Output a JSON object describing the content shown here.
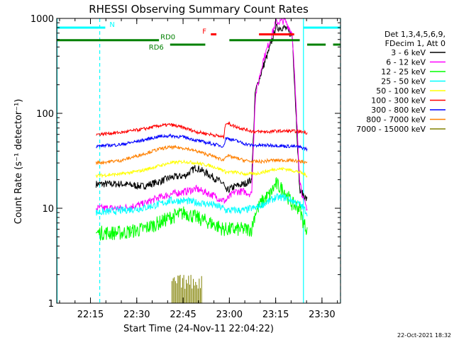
{
  "chart_data": {
    "type": "line",
    "title": "RHESSI Observing Summary Count Rates",
    "xlabel": "Start Time (24-Nov-11 22:04:22)",
    "ylabel": "Count Rate (s⁻¹ detector⁻¹)",
    "yscale": "log",
    "ylim": [
      1,
      1000
    ],
    "xlim": [
      22.068,
      23.6
    ],
    "x_tick_labels": [
      "22:15",
      "22:30",
      "22:45",
      "23:00",
      "23:15",
      "23:30"
    ],
    "x_tick_values": [
      22.25,
      22.5,
      22.75,
      23.0,
      23.25,
      23.5
    ],
    "y_tick_labels": [
      "1",
      "10",
      "100",
      "1000"
    ],
    "y_tick_values": [
      1,
      10,
      100,
      1000
    ],
    "legend_title": [
      "Det 1,3,4,5,6,9,",
      "FDecim 1, Att 0"
    ],
    "legend_position": "right",
    "timestamp": "22-Oct-2021 18:32",
    "series": [
      {
        "name": "3 - 6 keV",
        "color": "#000000",
        "x": [
          22.28,
          22.42,
          22.53,
          22.62,
          22.68,
          22.76,
          22.82,
          22.9,
          22.97,
          22.98,
          23.03,
          23.08,
          23.12,
          23.14,
          23.18,
          23.22,
          23.25,
          23.3,
          23.34,
          23.38,
          23.4,
          23.42
        ],
        "y": [
          18,
          18,
          17,
          19,
          21,
          22,
          27,
          22,
          18,
          15,
          17,
          18,
          20,
          170,
          300,
          500,
          800,
          800,
          650,
          15,
          14,
          12
        ]
      },
      {
        "name": "6 - 12 keV",
        "color": "#ff00ff",
        "x": [
          22.28,
          22.42,
          22.53,
          22.62,
          22.68,
          22.76,
          22.82,
          22.9,
          22.97,
          22.98,
          23.03,
          23.08,
          23.12,
          23.14,
          23.18,
          23.22,
          23.25,
          23.3,
          23.34,
          23.38,
          23.4,
          23.42
        ],
        "y": [
          10,
          10,
          11,
          13,
          14,
          15,
          16,
          14,
          12,
          12,
          15,
          15,
          14,
          150,
          350,
          600,
          900,
          950,
          700,
          20,
          12,
          10
        ]
      },
      {
        "name": "12 - 25 keV",
        "color": "#00ff00",
        "x": [
          22.28,
          22.42,
          22.53,
          22.62,
          22.68,
          22.76,
          22.82,
          22.9,
          22.97,
          22.98,
          23.03,
          23.08,
          23.12,
          23.14,
          23.18,
          23.22,
          23.25,
          23.3,
          23.34,
          23.38,
          23.4,
          23.42
        ],
        "y": [
          5.5,
          5.5,
          6,
          7,
          8,
          9,
          8,
          7,
          6,
          6,
          6,
          6,
          6,
          9,
          12,
          14,
          18,
          15,
          11,
          10,
          7,
          6
        ]
      },
      {
        "name": "25 - 50 keV",
        "color": "#00ffff",
        "x": [
          22.28,
          22.42,
          22.53,
          22.62,
          22.68,
          22.76,
          22.82,
          22.9,
          22.97,
          22.98,
          23.03,
          23.08,
          23.12,
          23.14,
          23.18,
          23.22,
          23.25,
          23.3,
          23.34,
          23.38,
          23.4,
          23.42
        ],
        "y": [
          9,
          9.5,
          10,
          11,
          12,
          12,
          11.5,
          11,
          10,
          9.5,
          9.5,
          9.5,
          10,
          10,
          11,
          12,
          13,
          13,
          12,
          11,
          10,
          9
        ]
      },
      {
        "name": "50 - 100 keV",
        "color": "#ffff00",
        "x": [
          22.28,
          22.42,
          22.53,
          22.62,
          22.68,
          22.76,
          22.82,
          22.9,
          22.97,
          22.98,
          23.03,
          23.08,
          23.12,
          23.14,
          23.18,
          23.22,
          23.25,
          23.3,
          23.34,
          23.38,
          23.4,
          23.42
        ],
        "y": [
          22,
          23,
          25,
          28,
          30,
          31,
          30,
          28,
          25,
          24,
          24,
          23,
          23,
          23,
          24,
          25,
          26,
          26,
          25,
          24,
          23,
          22
        ]
      },
      {
        "name": "100 - 300 keV",
        "color": "#ff0000",
        "x": [
          22.28,
          22.42,
          22.53,
          22.62,
          22.68,
          22.76,
          22.82,
          22.9,
          22.97,
          22.98,
          23.03,
          23.08,
          23.12,
          23.14,
          23.18,
          23.22,
          23.25,
          23.3,
          23.34,
          23.38,
          23.4,
          23.42
        ],
        "y": [
          60,
          63,
          68,
          74,
          76,
          70,
          64,
          60,
          56,
          80,
          73,
          68,
          65,
          64,
          64,
          64,
          65,
          65,
          65,
          64,
          64,
          62
        ]
      },
      {
        "name": "300 - 800 keV",
        "color": "#0000ff",
        "x": [
          22.28,
          22.42,
          22.53,
          22.62,
          22.68,
          22.76,
          22.82,
          22.9,
          22.97,
          22.98,
          23.03,
          23.08,
          23.12,
          23.14,
          23.18,
          23.22,
          23.25,
          23.3,
          23.34,
          23.38,
          23.4,
          23.42
        ],
        "y": [
          45,
          47,
          52,
          57,
          58,
          56,
          52,
          48,
          45,
          55,
          52,
          48,
          46,
          46,
          46,
          46,
          46,
          45,
          45,
          44,
          43,
          42
        ]
      },
      {
        "name": "800 - 7000 keV",
        "color": "#ff8000",
        "x": [
          22.28,
          22.42,
          22.53,
          22.62,
          22.68,
          22.76,
          22.82,
          22.9,
          22.97,
          22.98,
          23.03,
          23.08,
          23.12,
          23.14,
          23.18,
          23.22,
          23.25,
          23.3,
          23.34,
          23.38,
          23.4,
          23.42
        ],
        "y": [
          30,
          32,
          37,
          42,
          44,
          43,
          40,
          36,
          32,
          36,
          34,
          32,
          31,
          31,
          31,
          32,
          32,
          32,
          32,
          31,
          31,
          30
        ]
      },
      {
        "name": "7000 - 15000 keV",
        "color": "#808000",
        "x": [
          22.69,
          22.71,
          22.73,
          22.75,
          22.77,
          22.79,
          22.81,
          22.83,
          22.85
        ],
        "y": [
          1.5,
          2,
          1.6,
          2,
          1.7,
          2,
          1.6,
          2,
          1.4
        ]
      }
    ],
    "flags": [
      {
        "label": "N",
        "color": "#00ffff",
        "segments": [
          [
            22.07,
            22.33
          ],
          [
            23.4,
            23.6
          ]
        ],
        "y": 800
      },
      {
        "label": "F",
        "color": "#ff0000",
        "segments": [
          [
            23.16,
            23.35
          ],
          [
            22.9,
            22.93
          ]
        ],
        "y": 680
      },
      {
        "label": "RD0",
        "color": "#008000",
        "segments": [
          [
            22.07,
            22.62
          ],
          [
            23.0,
            23.38
          ]
        ],
        "y": 590
      },
      {
        "label": "RD6",
        "color": "#008000",
        "segments": [
          [
            22.68,
            22.87
          ],
          [
            23.42,
            23.52
          ],
          [
            23.56,
            23.6
          ]
        ],
        "y": 530
      }
    ],
    "vlines": [
      {
        "x": 22.07,
        "color": "#00ffff",
        "style": "solid"
      },
      {
        "x": 22.3,
        "color": "#00ffff",
        "style": "dashed"
      },
      {
        "x": 23.4,
        "color": "#00ffff",
        "style": "solid"
      },
      {
        "x": 23.6,
        "color": "#00ffff",
        "style": "dashed"
      }
    ]
  }
}
